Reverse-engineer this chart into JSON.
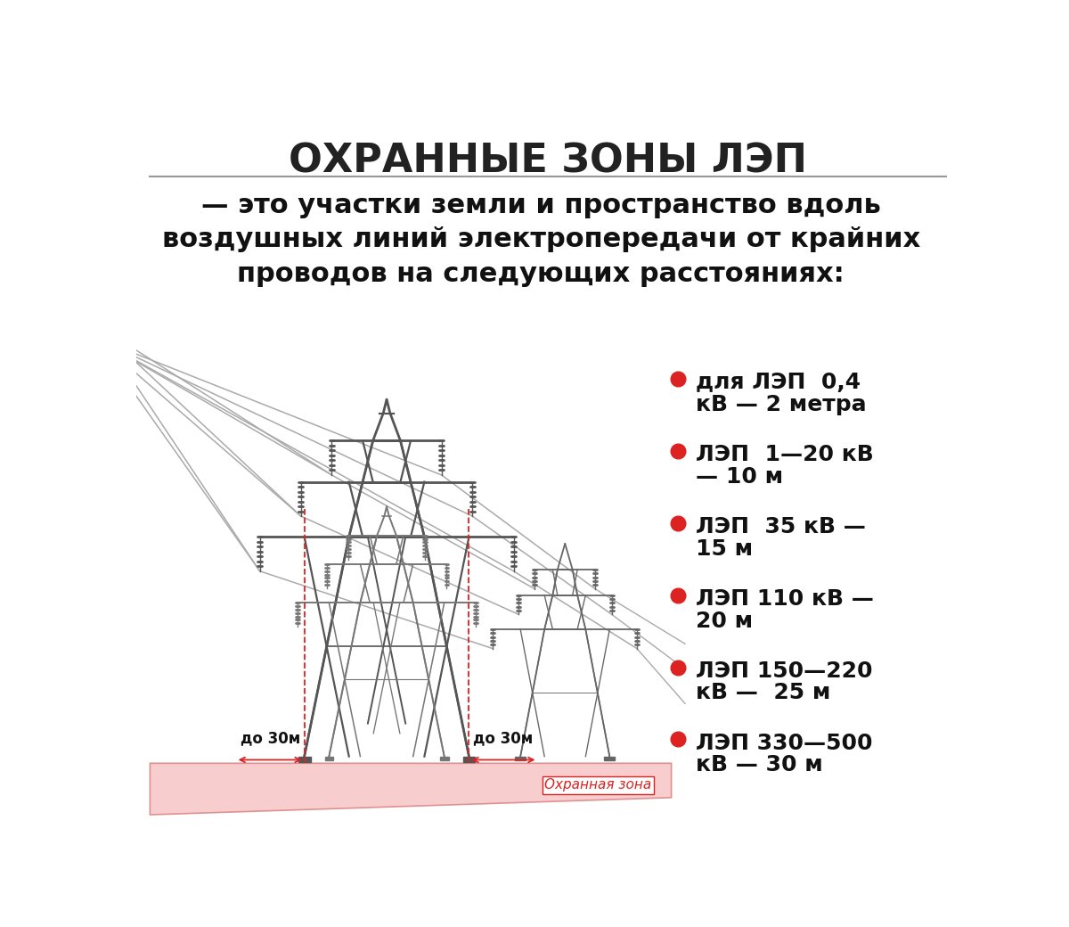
{
  "title": "ОХРАННЫЕ ЗОНЫ ЛЭП",
  "subtitle_line1": "— это участки земли и пространство вдоль",
  "subtitle_line2": "воздушных линий электропередачи от крайних",
  "subtitle_line3": "проводов на следующих расстояниях:",
  "bg_color": "#ffffff",
  "title_color": "#222222",
  "text_color": "#111111",
  "tower_color": "#555555",
  "wire_color": "#aaaaaa",
  "zone_color": "#f7c8c8",
  "zone_edge_color": "#dd8888",
  "dashed_color": "#dd2222",
  "arrow_color": "#dd2222",
  "dot_color": "#dd2222",
  "legend_items": [
    {
      "line1": "для ЛЭП  0,4",
      "line2": "кВ — 2 метра"
    },
    {
      "line1": "ЛЭП  1—20 кВ",
      "line2": "— 10 м"
    },
    {
      "line1": "ЛЭП  35 кВ —",
      "line2": "15 м"
    },
    {
      "line1": "ЛЭП 110 кВ —",
      "line2": "20 м"
    },
    {
      "line1": "ЛЭП 150—220",
      "line2": "кВ —  25 м"
    },
    {
      "line1": "ЛЭП 330—500",
      "line2": "кВ — 30 м"
    }
  ],
  "dist_label": "до 30м",
  "zone_label": "Охранная зона"
}
